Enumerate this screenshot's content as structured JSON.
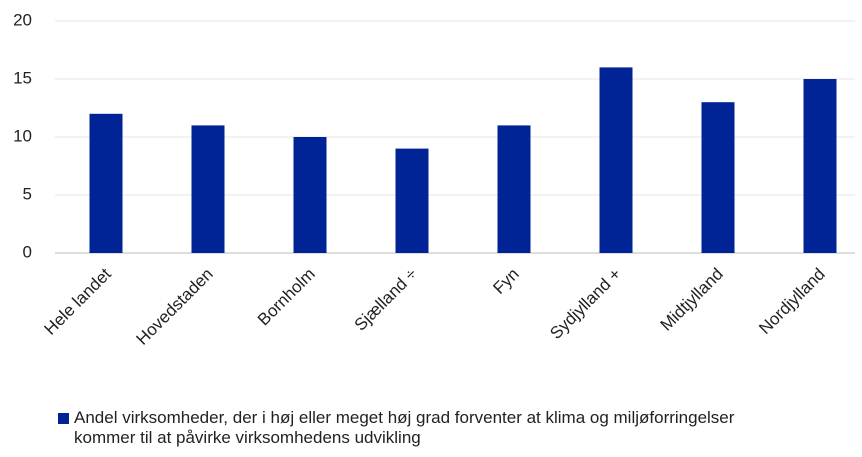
{
  "chart_data": {
    "type": "bar",
    "categories": [
      "Hele landet",
      "Hovedstaden",
      "Bornholm",
      "Sjælland ÷",
      "Fyn",
      "Sydjylland +",
      "Midtjylland",
      "Nordjylland"
    ],
    "series": [
      {
        "name": "Andel virksomheder, der i høj eller meget høj grad forventer at klima og miljøforringelser kommer til at påvirke virksomhedens udvikling",
        "color": "#002395",
        "values": [
          12,
          11,
          10,
          9,
          11,
          16,
          13,
          15
        ]
      }
    ],
    "ylim": [
      0,
      20
    ],
    "yticks": [
      0,
      5,
      10,
      15,
      20
    ],
    "grid": true
  }
}
